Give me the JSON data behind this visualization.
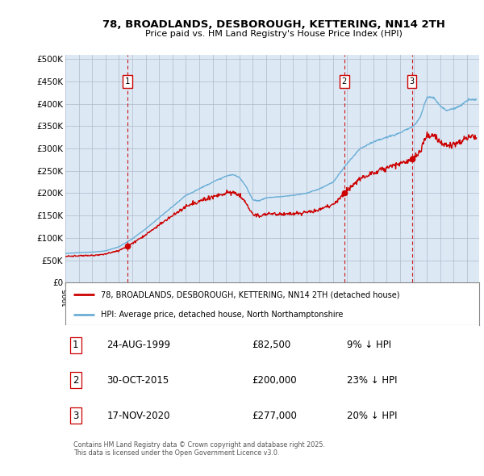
{
  "title": "78, BROADLANDS, DESBOROUGH, KETTERING, NN14 2TH",
  "subtitle": "Price paid vs. HM Land Registry's House Price Index (HPI)",
  "ylabel_ticks": [
    "£0",
    "£50K",
    "£100K",
    "£150K",
    "£200K",
    "£250K",
    "£300K",
    "£350K",
    "£400K",
    "£450K",
    "£500K"
  ],
  "ytick_values": [
    0,
    50000,
    100000,
    150000,
    200000,
    250000,
    300000,
    350000,
    400000,
    450000,
    500000
  ],
  "ylim": [
    0,
    510000
  ],
  "xlim_start": 1995.0,
  "xlim_end": 2025.9,
  "hpi_color": "#6baed6",
  "price_color": "#cc0000",
  "dashed_color": "#cc0000",
  "plot_bg": "#dce9f5",
  "legend_label_price": "78, BROADLANDS, DESBOROUGH, KETTERING, NN14 2TH (detached house)",
  "legend_label_hpi": "HPI: Average price, detached house, North Northamptonshire",
  "sale_points": [
    {
      "label": "1",
      "date": "24-AUG-1999",
      "year": 1999.65,
      "price": 82500,
      "pct": "9%",
      "dir": "↓"
    },
    {
      "label": "2",
      "date": "30-OCT-2015",
      "year": 2015.83,
      "price": 200000,
      "pct": "23%",
      "dir": "↓"
    },
    {
      "label": "3",
      "date": "17-NOV-2020",
      "year": 2020.88,
      "price": 277000,
      "pct": "20%",
      "dir": "↓"
    }
  ],
  "table_rows": [
    {
      "num": "1",
      "date": "24-AUG-1999",
      "price": "£82,500",
      "pct": "9% ↓ HPI"
    },
    {
      "num": "2",
      "date": "30-OCT-2015",
      "price": "£200,000",
      "pct": "23% ↓ HPI"
    },
    {
      "num": "3",
      "date": "17-NOV-2020",
      "price": "£277,000",
      "pct": "20% ↓ HPI"
    }
  ],
  "footnote": "Contains HM Land Registry data © Crown copyright and database right 2025.\nThis data is licensed under the Open Government Licence v3.0."
}
